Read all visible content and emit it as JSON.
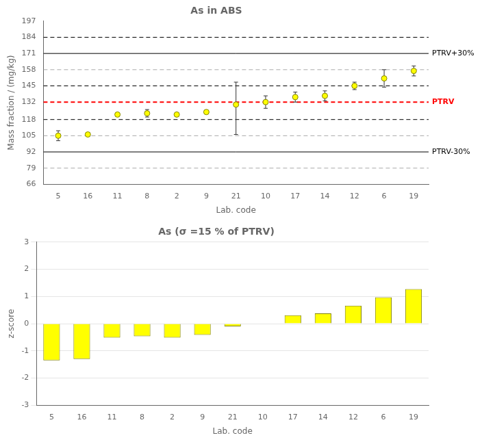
{
  "chart_data": [
    {
      "type": "scatter",
      "title": "As in ABS",
      "xlabel": "Lab. code",
      "ylabel": "Mass fraction / (mg/kg)",
      "categories": [
        "5",
        "16",
        "11",
        "8",
        "2",
        "9",
        "21",
        "10",
        "17",
        "14",
        "12",
        "6",
        "19"
      ],
      "values": [
        105,
        106,
        122,
        123,
        122,
        124,
        130,
        132,
        136,
        137,
        145,
        151,
        157
      ],
      "errors_up": [
        4,
        1,
        1,
        3,
        1,
        1,
        18,
        5,
        4,
        4,
        3,
        7,
        4
      ],
      "errors_down": [
        4,
        1,
        1,
        3,
        1,
        1,
        24,
        5,
        4,
        4,
        3,
        7,
        4
      ],
      "color": "#FFFF00",
      "marker": "circle",
      "ylim": [
        66,
        197
      ],
      "yticks": [
        66,
        79,
        92,
        105,
        118,
        132,
        145,
        158,
        171,
        184,
        197
      ],
      "grid": false,
      "lines": [
        {
          "y": 171,
          "color": "#000000",
          "line_style": "solid",
          "label": "PTRV+30%"
        },
        {
          "y": 92,
          "color": "#000000",
          "line_style": "solid",
          "label": "PTRV-30%"
        },
        {
          "y": 184,
          "color": "#000000",
          "line_style": "dashed"
        },
        {
          "y": 145,
          "color": "#000000",
          "line_style": "dashed"
        },
        {
          "y": 118,
          "color": "#000000",
          "line_style": "dashed"
        },
        {
          "y": 158,
          "color": "#aaaaaa",
          "line_style": "dashed"
        },
        {
          "y": 105,
          "color": "#aaaaaa",
          "line_style": "dashed"
        },
        {
          "y": 79,
          "color": "#aaaaaa",
          "line_style": "dashed"
        },
        {
          "y": 132,
          "color": "#FF0000",
          "line_style": "dashed",
          "label": "PTRV"
        }
      ]
    },
    {
      "type": "bar",
      "title": "As (σ =15 % of PTRV)",
      "xlabel": "Lab. code",
      "ylabel": "z-score",
      "categories": [
        "5",
        "16",
        "11",
        "8",
        "2",
        "9",
        "21",
        "10",
        "17",
        "14",
        "12",
        "6",
        "19"
      ],
      "values": [
        -1.35,
        -1.3,
        -0.51,
        -0.46,
        -0.51,
        -0.41,
        -0.1,
        0.0,
        0.31,
        0.38,
        0.66,
        0.97,
        1.27
      ],
      "color": "#FFFF00",
      "ylim": [
        -3,
        3
      ],
      "yticks": [
        -3,
        -2,
        -1,
        0,
        1,
        2,
        3
      ],
      "grid": "y"
    }
  ]
}
